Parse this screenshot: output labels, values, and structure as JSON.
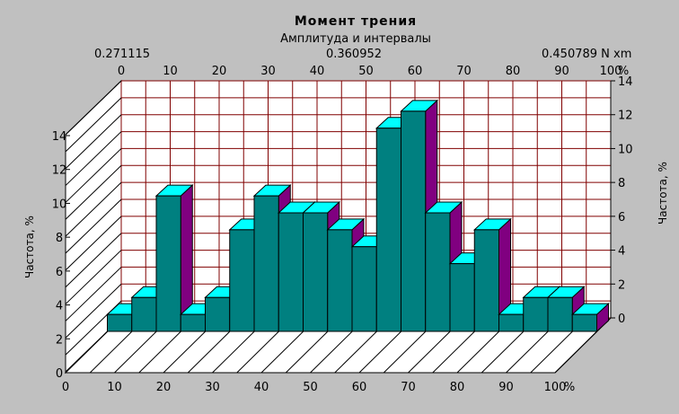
{
  "chart_data": {
    "type": "bar",
    "title": "Момент трения",
    "subtitle": "Амплитуда и интервалы",
    "top_labels": {
      "left": "0.271115",
      "mid": "0.360952",
      "right": "0.450789 N xm"
    },
    "x": [
      2.5,
      7.5,
      12.5,
      17.5,
      22.5,
      27.5,
      32.5,
      37.5,
      42.5,
      47.5,
      52.5,
      57.5,
      62.5,
      67.5,
      72.5,
      77.5,
      82.5,
      87.5,
      92.5,
      97.5
    ],
    "values": [
      1,
      2,
      8,
      1,
      2,
      6,
      8,
      7,
      7,
      6,
      5,
      12,
      13,
      7,
      4,
      6,
      1,
      2,
      2,
      1
    ],
    "xlim": [
      0,
      100
    ],
    "ylim": [
      0,
      14
    ],
    "x_ticks": [
      "0",
      "10",
      "20",
      "30",
      "40",
      "50",
      "60",
      "70",
      "80",
      "90",
      "100"
    ],
    "x_unit": "%",
    "y_ticks": [
      "0",
      "2",
      "4",
      "6",
      "8",
      "10",
      "12",
      "14"
    ],
    "ylabel": "Частота, %",
    "ylabel_right": "Частота, %",
    "grid": true,
    "colors": {
      "front": "#008080",
      "top": "#00ffff",
      "side": "#800080",
      "grid": "#800000",
      "background": "#c0c0c0",
      "plot": "#ffffff"
    }
  }
}
